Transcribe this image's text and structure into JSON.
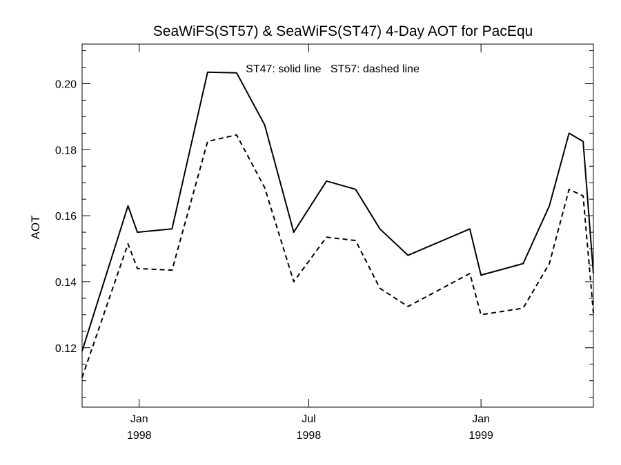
{
  "chart_data": {
    "type": "line",
    "title": "SeaWiFS(ST57) & SeaWiFS(ST47) 4-Day AOT for PacEqu",
    "annotation": "ST47: solid line   ST57: dashed line",
    "xlabel": "",
    "ylabel": "AOT",
    "xlim": [
      "1997-11-01",
      "1999-05-01"
    ],
    "ylim": [
      0.102,
      0.212
    ],
    "x_ticks": [
      {
        "date": "1998-01-01",
        "label1": "Jan",
        "label2": "1998"
      },
      {
        "date": "1998-07-01",
        "label1": "Jul",
        "label2": "1998"
      },
      {
        "date": "1999-01-01",
        "label1": "Jan",
        "label2": "1999"
      }
    ],
    "y_ticks": [
      0.12,
      0.14,
      0.16,
      0.18,
      0.2
    ],
    "y_tick_labels": [
      "0.12",
      "0.14",
      "0.16",
      "0.18",
      "0.20"
    ],
    "grid": false,
    "x": [
      "1997-11-01",
      "1997-12-20",
      "1997-12-30",
      "1998-02-05",
      "1998-03-15",
      "1998-04-15",
      "1998-05-15",
      "1998-06-15",
      "1998-07-20",
      "1998-08-20",
      "1998-09-15",
      "1998-10-15",
      "1998-12-20",
      "1999-01-01",
      "1999-02-15",
      "1999-03-15",
      "1999-04-05",
      "1999-04-20",
      "1999-05-01"
    ],
    "series": [
      {
        "name": "ST47",
        "style": "solid",
        "values": [
          0.119,
          0.163,
          0.155,
          0.156,
          0.2035,
          0.2033,
          0.1875,
          0.155,
          0.1705,
          0.168,
          0.156,
          0.148,
          0.156,
          0.142,
          0.1455,
          0.163,
          0.185,
          0.1825,
          0.1425
        ]
      },
      {
        "name": "ST57",
        "style": "dashed",
        "values": [
          0.111,
          0.1515,
          0.144,
          0.1435,
          0.1825,
          0.1845,
          0.1685,
          0.14,
          0.1535,
          0.1525,
          0.138,
          0.1325,
          0.1425,
          0.13,
          0.132,
          0.1455,
          0.168,
          0.166,
          0.1305
        ]
      }
    ]
  }
}
